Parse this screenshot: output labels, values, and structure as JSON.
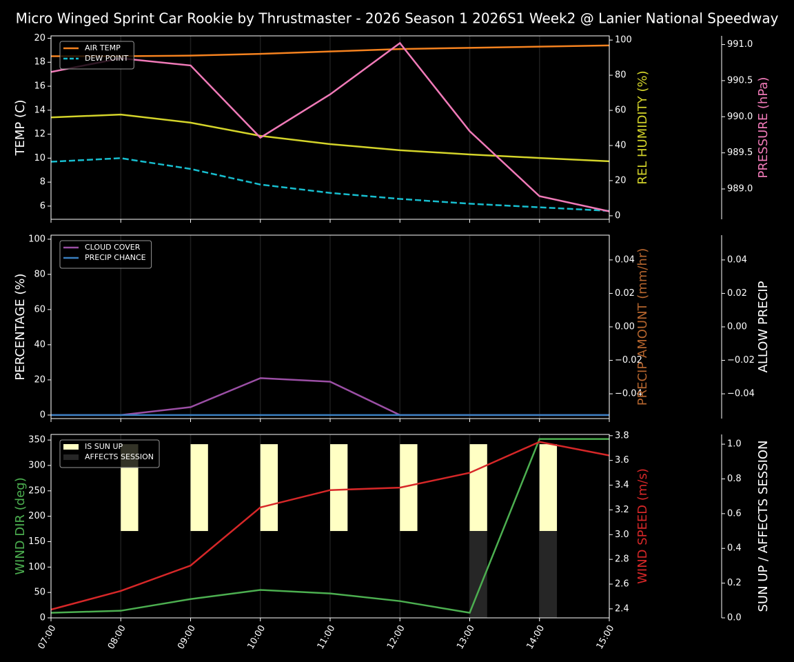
{
  "title": "Micro Winged Sprint Car Rookie by Thrustmaster - 2026 Season 1 2026S1 Week2 @ Lanier National Speedway",
  "chart_data": [
    {
      "type": "line",
      "legend": "upper left",
      "ylabel": "TEMP (C)",
      "ycolor": "#ffffff",
      "ylim": [
        4.9,
        20.2
      ],
      "yticks": [
        6,
        8,
        10,
        12,
        14,
        16,
        18,
        20
      ],
      "y2label": "REL HUMIDITY (%)",
      "y2color": "#d4d42a",
      "y2lim": [
        -2,
        102.4
      ],
      "y2ticks": [
        0,
        20,
        40,
        60,
        80,
        100
      ],
      "y3label": "PRESSURE (hPa)",
      "y3color": "#f07ab8",
      "y3lim": [
        988.58,
        991.12
      ],
      "y3ticks": [
        {
          "value": 989,
          "label": "989.0"
        },
        989.5,
        {
          "value": 990,
          "label": "990.0"
        },
        990.5,
        {
          "value": 991,
          "label": "991.0"
        }
      ],
      "series": [
        {
          "name": "AIR TEMP",
          "color": "#f5821f",
          "axis": "y",
          "values": [
            18.5,
            18.5,
            18.55,
            18.7,
            18.9,
            19.1,
            19.2,
            19.3,
            19.4
          ]
        },
        {
          "name": "DEW POINT",
          "color": "#17becf",
          "axis": "y",
          "linestyle": "dashed",
          "values": [
            9.7,
            10.0,
            9.1,
            7.8,
            7.1,
            6.6,
            6.2,
            5.9,
            5.6
          ]
        },
        {
          "color": "#d4d42a",
          "axis": "y2",
          "values": [
            56,
            57.6,
            53,
            45.5,
            40.8,
            37.3,
            34.9,
            32.9,
            31
          ]
        },
        {
          "color": "#f07ab8",
          "axis": "y3",
          "values": [
            990.62,
            990.81,
            990.71,
            989.71,
            990.31,
            991.02,
            989.8,
            988.9,
            988.69
          ]
        }
      ]
    },
    {
      "type": "line",
      "legend": "upper left",
      "ylabel": "PERCENTAGE (%)",
      "ycolor": "#ffffff",
      "ylim": [
        -2,
        102.3
      ],
      "yticks": [
        0,
        20,
        40,
        60,
        80,
        100
      ],
      "y2label": "PRECIP AMOUNT (mm/hr)",
      "y2color": "#b5652e",
      "y2lim": [
        -0.0548,
        0.0548
      ],
      "y2ticks": [
        {
          "value": -0.04,
          "label": "−0.04"
        },
        {
          "value": -0.02,
          "label": "−0.02"
        },
        {
          "value": 0,
          "label": "0.00"
        },
        0.02,
        0.04
      ],
      "y3label": "ALLOW PRECIP",
      "y3color": "#ffffff",
      "y3lim": [
        -0.0548,
        0.0548
      ],
      "y3ticks": [
        {
          "value": -0.04,
          "label": "−0.04"
        },
        {
          "value": -0.02,
          "label": "−0.02"
        },
        {
          "value": 0,
          "label": "0.00"
        },
        0.02,
        0.04
      ],
      "series": [
        {
          "name": "CLOUD COVER",
          "color": "#9b4fa5",
          "axis": "y",
          "values": [
            0,
            0,
            4.5,
            21,
            19,
            0,
            0,
            0,
            0
          ]
        },
        {
          "name": "PRECIP CHANCE",
          "color": "#3a7fc0",
          "axis": "y",
          "values": [
            0,
            0,
            0,
            0,
            0,
            0,
            0,
            0,
            0
          ]
        }
      ]
    },
    {
      "type": "line",
      "legend": "upper left",
      "categories": [
        "07:00",
        "08:00",
        "09:00",
        "10:00",
        "11:00",
        "12:00",
        "13:00",
        "14:00",
        "15:00"
      ],
      "ylabel": "WIND DIR (deg)",
      "ycolor": "#4caf50",
      "ylim": [
        0,
        361
      ],
      "yticks": [
        0,
        50,
        100,
        150,
        200,
        250,
        300,
        350
      ],
      "y2label": "WIND SPEED (m/s)",
      "y2color": "#d62728",
      "y2lim": [
        2.327,
        3.81
      ],
      "y2ticks": [
        2.4,
        2.6,
        2.8,
        {
          "value": 3,
          "label": "3.0"
        },
        3.2,
        3.4,
        3.6,
        3.8
      ],
      "y3label": "SUN UP / AFFECTS SESSION",
      "y3color": "#ffffff",
      "y3lim": [
        0,
        1.056
      ],
      "y3ticks": [
        {
          "value": 0,
          "label": "0.0"
        },
        0.2,
        0.4,
        0.6,
        0.8,
        {
          "value": 1,
          "label": "1.0"
        }
      ],
      "series": [
        {
          "name": "IS SUN UP",
          "type": "bar",
          "color": "#ffffc4",
          "axis": "y3",
          "base": 0.5,
          "values": [
            null,
            1,
            1,
            1,
            1,
            1,
            1,
            1,
            null
          ]
        },
        {
          "name": "AFFECTS SESSION",
          "type": "bar",
          "color": "#262626",
          "axis": "y3",
          "base": 0,
          "values": [
            null,
            null,
            null,
            null,
            null,
            null,
            0.5,
            0.5,
            null
          ]
        },
        {
          "color": "#4caf50",
          "axis": "y",
          "values": [
            10,
            14,
            37,
            55,
            48,
            33,
            10,
            352,
            352
          ]
        },
        {
          "color": "#d62728",
          "axis": "y2",
          "values": [
            2.394,
            2.545,
            2.75,
            3.22,
            3.36,
            3.38,
            3.5,
            3.75,
            3.64
          ]
        }
      ]
    }
  ]
}
